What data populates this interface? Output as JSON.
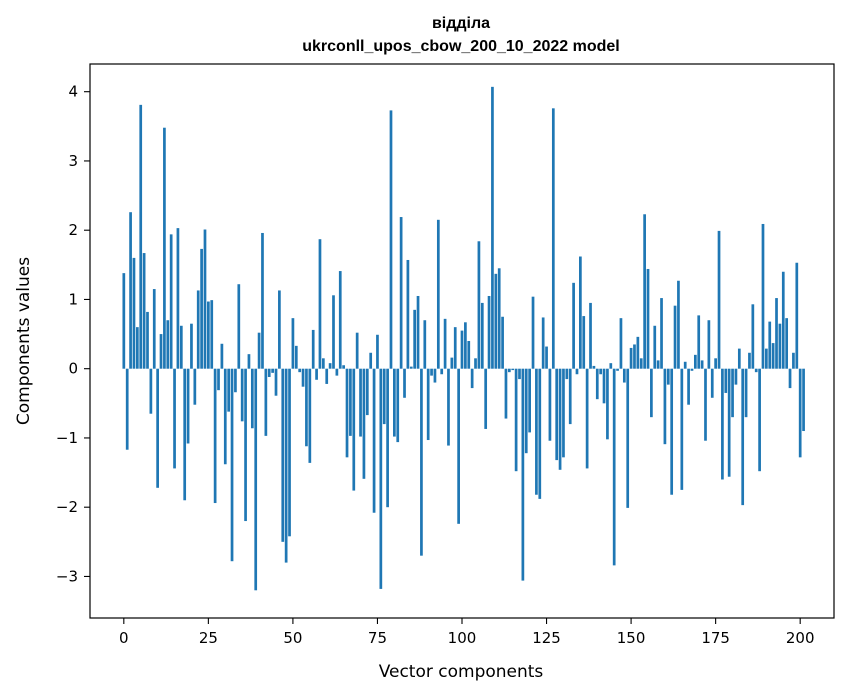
{
  "chart_data": {
    "type": "bar",
    "title": "відділа",
    "subtitle": "ukrconll_upos_cbow_200_10_2022 model",
    "xlabel": "Vector components",
    "ylabel": "Components values",
    "xlim": [
      -10,
      210
    ],
    "ylim": [
      -3.6,
      4.4
    ],
    "xticks": [
      0,
      25,
      50,
      75,
      100,
      125,
      150,
      175,
      200
    ],
    "yticks": [
      -3,
      -2,
      -1,
      0,
      1,
      2,
      3,
      4
    ],
    "xtick_labels": [
      "0",
      "25",
      "50",
      "75",
      "100",
      "125",
      "150",
      "175",
      "200"
    ],
    "ytick_labels": [
      "−3",
      "−2",
      "−1",
      "0",
      "1",
      "2",
      "3",
      "4"
    ],
    "bar_color": "#1f77b4",
    "values": [
      1.38,
      -1.17,
      2.26,
      1.6,
      0.6,
      3.81,
      1.67,
      0.82,
      -0.65,
      1.15,
      -1.72,
      0.5,
      3.48,
      0.7,
      1.94,
      -1.44,
      2.03,
      0.62,
      -1.9,
      -1.08,
      0.65,
      -0.52,
      1.13,
      1.73,
      2.01,
      0.97,
      0.99,
      -1.94,
      -0.31,
      0.36,
      -1.38,
      -0.62,
      -2.78,
      -0.34,
      1.22,
      -0.76,
      -2.2,
      0.21,
      -0.86,
      -3.2,
      0.52,
      1.96,
      -0.97,
      -0.12,
      -0.06,
      -0.39,
      1.13,
      -2.5,
      -2.8,
      -2.42,
      0.73,
      0.33,
      -0.05,
      -0.26,
      -1.12,
      -1.36,
      0.56,
      -0.16,
      1.87,
      0.15,
      -0.22,
      0.08,
      1.06,
      -0.1,
      1.41,
      0.05,
      -1.28,
      -0.97,
      -1.76,
      0.52,
      -0.98,
      -1.59,
      -0.67,
      0.23,
      -2.08,
      0.49,
      -3.18,
      -0.8,
      -2.0,
      3.73,
      -0.98,
      -1.06,
      2.19,
      -0.42,
      1.57,
      0.03,
      0.85,
      1.05,
      -2.7,
      0.7,
      -1.03,
      -0.1,
      -0.2,
      2.15,
      -0.08,
      0.72,
      -1.11,
      0.16,
      0.6,
      -2.24,
      0.55,
      0.67,
      0.4,
      -0.28,
      0.15,
      1.84,
      0.95,
      -0.87,
      1.05,
      4.07,
      1.37,
      1.45,
      0.75,
      -0.72,
      -0.05,
      -0.02,
      -1.48,
      -0.15,
      -3.06,
      -1.22,
      -0.92,
      1.04,
      -1.82,
      -1.88,
      0.74,
      0.32,
      -1.04,
      3.76,
      -1.32,
      -1.46,
      -1.28,
      -0.15,
      -0.8,
      1.24,
      -0.08,
      1.62,
      0.76,
      -1.44,
      0.95,
      0.04,
      -0.44,
      -0.08,
      -0.5,
      -1.02,
      0.08,
      -2.84,
      -0.03,
      0.73,
      -0.2,
      -2.01,
      0.3,
      0.35,
      0.46,
      0.15,
      2.23,
      1.44,
      -0.7,
      0.62,
      0.12,
      1.02,
      -1.09,
      -0.23,
      -1.82,
      0.91,
      1.27,
      -1.75,
      0.1,
      -0.52,
      -0.03,
      0.2,
      0.77,
      0.12,
      -1.04,
      0.7,
      -0.42,
      0.15,
      1.99,
      -1.6,
      -0.35,
      -1.56,
      -0.7,
      -0.23,
      0.29,
      -1.97,
      -0.7,
      0.23,
      0.93,
      -0.05,
      -1.48,
      2.09,
      0.29,
      0.68,
      0.37,
      1.02,
      0.65,
      1.4,
      0.73,
      -0.28,
      0.23,
      1.53,
      -1.28,
      -0.9
    ]
  }
}
